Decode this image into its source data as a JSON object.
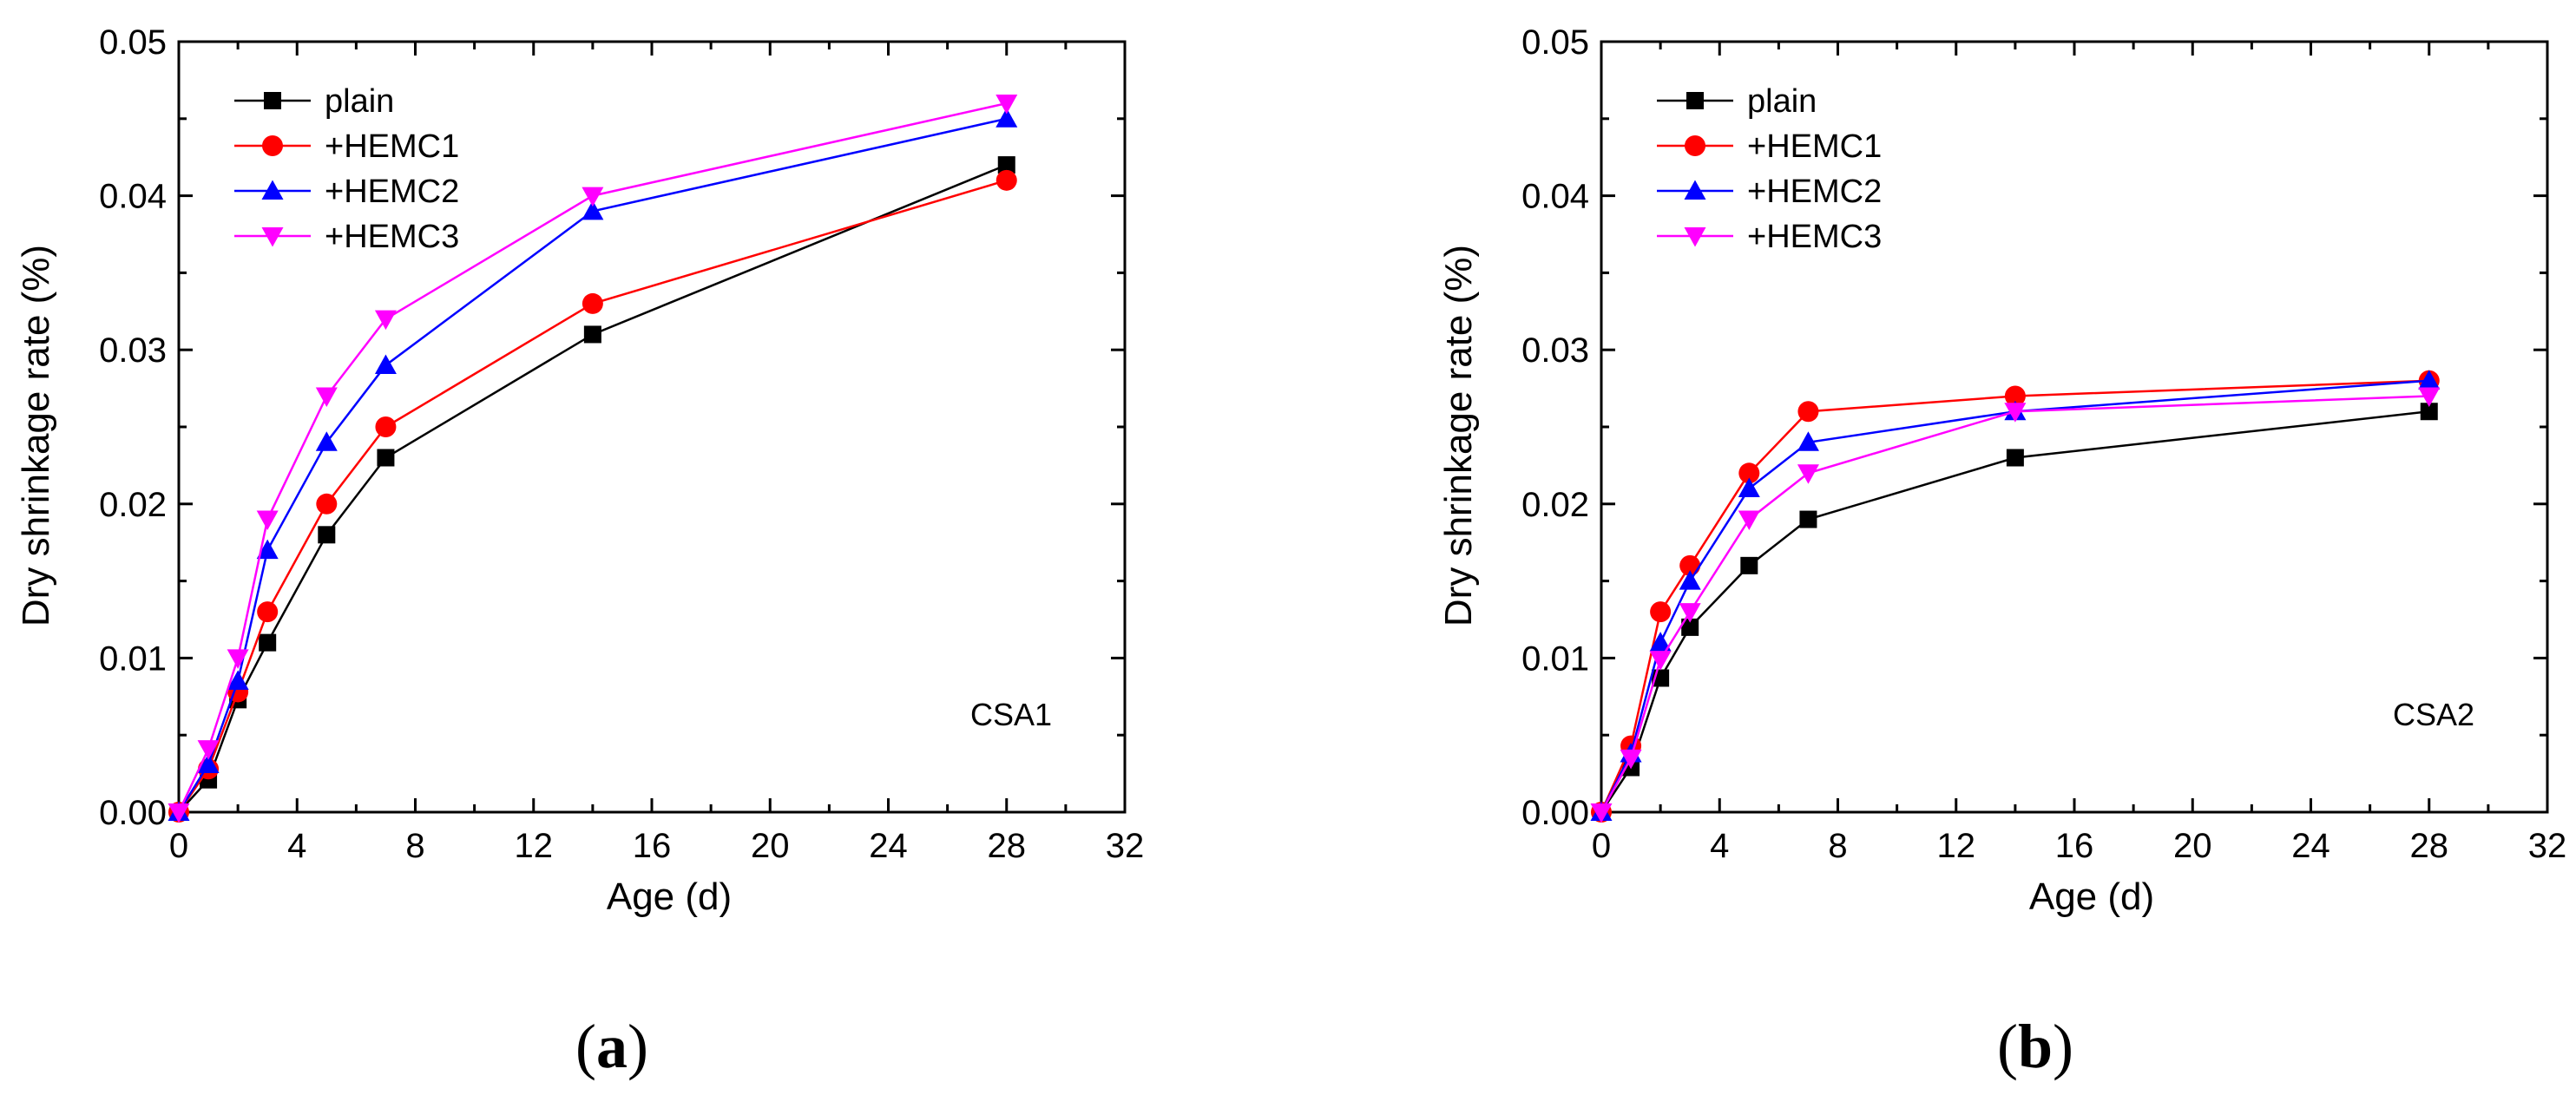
{
  "chart_data": [
    {
      "type": "line",
      "panel_label": "CSA1",
      "caption": "(a)",
      "caption_letter": "a",
      "xlabel": "Age (d)",
      "ylabel": "Dry shrinkage rate (%)",
      "xlim": [
        0,
        32
      ],
      "ylim": [
        0,
        0.05
      ],
      "xticks": [
        0,
        4,
        8,
        12,
        16,
        20,
        24,
        28,
        32
      ],
      "yticks": [
        0,
        0.01,
        0.02,
        0.03,
        0.04,
        0.05
      ],
      "xtick_labels": [
        "0",
        "4",
        "8",
        "12",
        "16",
        "20",
        "24",
        "28",
        "32"
      ],
      "ytick_labels": [
        "0.00",
        "0.01",
        "0.02",
        "0.03",
        "0.04",
        "0.05"
      ],
      "legend_position": "top-left",
      "x": [
        0,
        1,
        2,
        3,
        5,
        7,
        14,
        28
      ],
      "series": [
        {
          "name": "plain",
          "color": "#000000",
          "marker": "square",
          "values": [
            0,
            0.0021,
            0.0073,
            0.011,
            0.018,
            0.023,
            0.031,
            0.042
          ]
        },
        {
          "name": "+HEMC1",
          "color": "#ff0000",
          "marker": "circle",
          "values": [
            0,
            0.0028,
            0.0078,
            0.013,
            0.02,
            0.025,
            0.033,
            0.041
          ]
        },
        {
          "name": "+HEMC2",
          "color": "#0000ff",
          "marker": "triangle-up",
          "values": [
            0,
            0.0031,
            0.0085,
            0.017,
            0.024,
            0.029,
            0.039,
            0.045
          ]
        },
        {
          "name": "+HEMC3",
          "color": "#ff00ff",
          "marker": "triangle-down",
          "values": [
            0,
            0.0041,
            0.01,
            0.019,
            0.027,
            0.032,
            0.04,
            0.046
          ]
        }
      ]
    },
    {
      "type": "line",
      "panel_label": "CSA2",
      "caption": "(b)",
      "caption_letter": "b",
      "xlabel": "Age (d)",
      "ylabel": "Dry shrinkage rate (%)",
      "xlim": [
        0,
        32
      ],
      "ylim": [
        0,
        0.05
      ],
      "xticks": [
        0,
        4,
        8,
        12,
        16,
        20,
        24,
        28,
        32
      ],
      "yticks": [
        0,
        0.01,
        0.02,
        0.03,
        0.04,
        0.05
      ],
      "xtick_labels": [
        "0",
        "4",
        "8",
        "12",
        "16",
        "20",
        "24",
        "28",
        "32"
      ],
      "ytick_labels": [
        "0.00",
        "0.01",
        "0.02",
        "0.03",
        "0.04",
        "0.05"
      ],
      "legend_position": "top-left",
      "x": [
        0,
        1,
        2,
        3,
        5,
        7,
        14,
        28
      ],
      "series": [
        {
          "name": "plain",
          "color": "#000000",
          "marker": "square",
          "values": [
            0,
            0.0029,
            0.0087,
            0.012,
            0.016,
            0.019,
            0.023,
            0.026
          ]
        },
        {
          "name": "+HEMC1",
          "color": "#ff0000",
          "marker": "circle",
          "values": [
            0,
            0.0043,
            0.013,
            0.016,
            0.022,
            0.026,
            0.027,
            0.028
          ]
        },
        {
          "name": "+HEMC2",
          "color": "#0000ff",
          "marker": "triangle-up",
          "values": [
            0,
            0.0038,
            0.011,
            0.015,
            0.021,
            0.024,
            0.026,
            0.028
          ]
        },
        {
          "name": "+HEMC3",
          "color": "#ff00ff",
          "marker": "triangle-down",
          "values": [
            0,
            0.0035,
            0.0099,
            0.013,
            0.019,
            0.022,
            0.026,
            0.027
          ]
        }
      ]
    }
  ]
}
